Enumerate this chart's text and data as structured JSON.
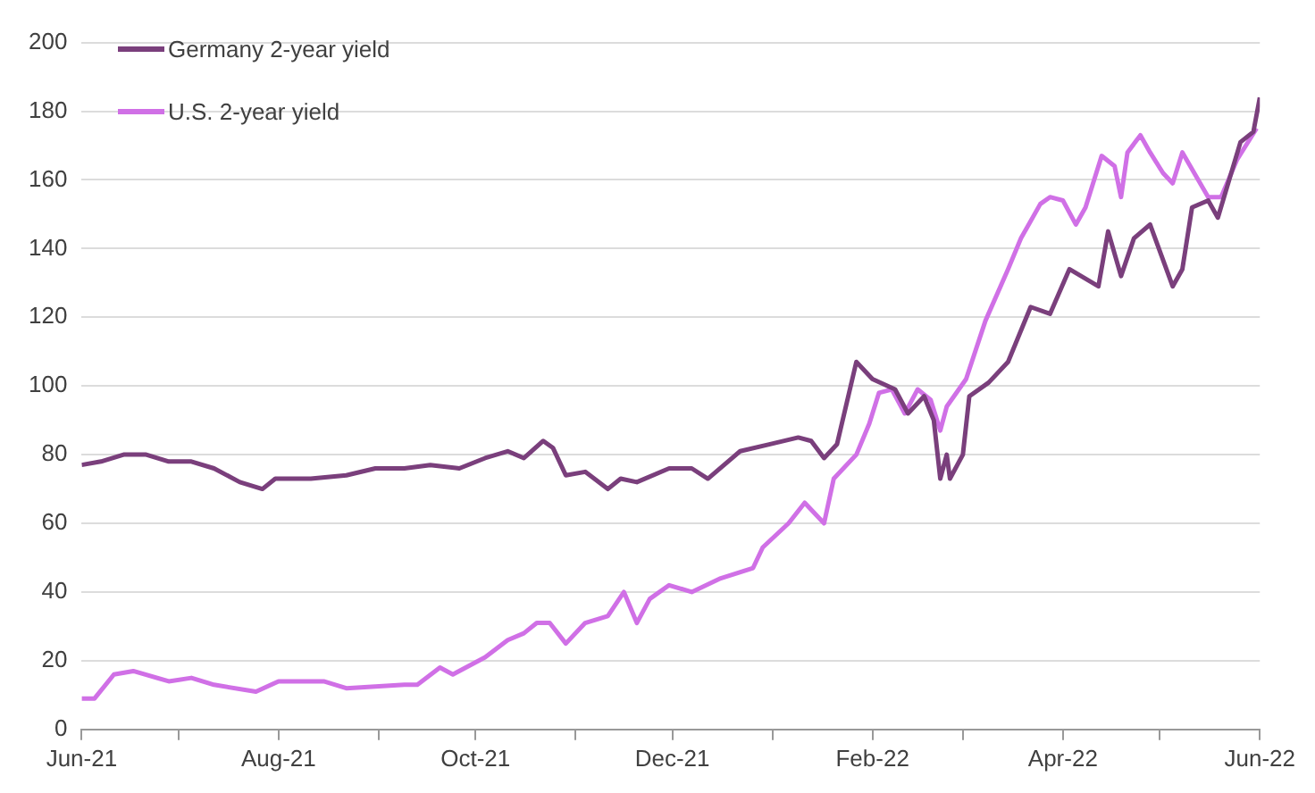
{
  "chart_data": {
    "type": "line",
    "xlim": [
      "2021-06-01",
      "2022-06-01"
    ],
    "xticks": [
      {
        "value": "2021-06-01",
        "label": "Jun-21"
      },
      {
        "value": "2021-07-01",
        "label": null
      },
      {
        "value": "2021-08-01",
        "label": "Aug-21"
      },
      {
        "value": "2021-09-01",
        "label": null
      },
      {
        "value": "2021-10-01",
        "label": "Oct-21"
      },
      {
        "value": "2021-11-01",
        "label": null
      },
      {
        "value": "2021-12-01",
        "label": "Dec-21"
      },
      {
        "value": "2022-01-01",
        "label": null
      },
      {
        "value": "2022-02-01",
        "label": "Feb-22"
      },
      {
        "value": "2022-03-01",
        "label": null
      },
      {
        "value": "2022-04-01",
        "label": "Apr-22"
      },
      {
        "value": "2022-05-01",
        "label": null
      },
      {
        "value": "2022-06-01",
        "label": "Jun-22"
      }
    ],
    "ylim": [
      0,
      200
    ],
    "yticks": [
      0,
      20,
      40,
      60,
      80,
      100,
      120,
      140,
      160,
      180,
      200
    ],
    "grid": "y",
    "legend": "top left",
    "marker": "none",
    "line_style": "solid",
    "series": [
      {
        "name": "Germany 2-year yield",
        "color": "#7a3f7c",
        "x": [
          "2021-06-01",
          "2021-06-07",
          "2021-06-14",
          "2021-06-21",
          "2021-06-28",
          "2021-07-05",
          "2021-07-12",
          "2021-07-20",
          "2021-07-27",
          "2021-07-31",
          "2021-08-11",
          "2021-08-22",
          "2021-08-31",
          "2021-09-09",
          "2021-09-17",
          "2021-09-26",
          "2021-10-04",
          "2021-10-11",
          "2021-10-16",
          "2021-10-22",
          "2021-10-25",
          "2021-10-29",
          "2021-11-04",
          "2021-11-11",
          "2021-11-15",
          "2021-11-20",
          "2021-11-30",
          "2021-12-07",
          "2021-12-12",
          "2021-12-22",
          "2021-12-31",
          "2022-01-09",
          "2022-01-13",
          "2022-01-17",
          "2022-01-21",
          "2022-01-27",
          "2022-02-01",
          "2022-02-08",
          "2022-02-12",
          "2022-02-17",
          "2022-02-20",
          "2022-02-22",
          "2022-02-24",
          "2022-02-25",
          "2022-03-01",
          "2022-03-03",
          "2022-03-09",
          "2022-03-15",
          "2022-03-22",
          "2022-03-28",
          "2022-04-03",
          "2022-04-12",
          "2022-04-15",
          "2022-04-19",
          "2022-04-23",
          "2022-04-28",
          "2022-05-05",
          "2022-05-08",
          "2022-05-11",
          "2022-05-16",
          "2022-05-19",
          "2022-05-26",
          "2022-05-30",
          "2022-06-01"
        ],
        "values": [
          77,
          78,
          80,
          80,
          78,
          78,
          76,
          72,
          70,
          73,
          73,
          74,
          76,
          76,
          77,
          76,
          79,
          81,
          79,
          84,
          82,
          74,
          75,
          70,
          73,
          72,
          76,
          76,
          73,
          81,
          83,
          85,
          84,
          79,
          83,
          107,
          102,
          99,
          92,
          97,
          90,
          73,
          80,
          73,
          80,
          97,
          101,
          107,
          123,
          121,
          134,
          129,
          145,
          132,
          143,
          147,
          129,
          134,
          152,
          154,
          149,
          171,
          174,
          184
        ]
      },
      {
        "name": "U.S. 2-year yield",
        "color": "#d070e6",
        "x": [
          "2021-06-01",
          "2021-06-05",
          "2021-06-11",
          "2021-06-17",
          "2021-06-28",
          "2021-07-05",
          "2021-07-12",
          "2021-07-25",
          "2021-08-01",
          "2021-08-15",
          "2021-08-22",
          "2021-09-09",
          "2021-09-13",
          "2021-09-20",
          "2021-09-24",
          "2021-10-04",
          "2021-10-11",
          "2021-10-16",
          "2021-10-20",
          "2021-10-24",
          "2021-10-29",
          "2021-11-04",
          "2021-11-11",
          "2021-11-16",
          "2021-11-20",
          "2021-11-24",
          "2021-11-30",
          "2021-12-07",
          "2021-12-16",
          "2021-12-26",
          "2021-12-29",
          "2022-01-06",
          "2022-01-11",
          "2022-01-17",
          "2022-01-20",
          "2022-01-27",
          "2022-01-31",
          "2022-02-03",
          "2022-02-07",
          "2022-02-11",
          "2022-02-15",
          "2022-02-19",
          "2022-02-22",
          "2022-02-24",
          "2022-03-02",
          "2022-03-08",
          "2022-03-15",
          "2022-03-19",
          "2022-03-25",
          "2022-03-28",
          "2022-04-01",
          "2022-04-05",
          "2022-04-08",
          "2022-04-13",
          "2022-04-17",
          "2022-04-19",
          "2022-04-21",
          "2022-04-25",
          "2022-04-28",
          "2022-05-02",
          "2022-05-05",
          "2022-05-08",
          "2022-05-16",
          "2022-05-20",
          "2022-05-25",
          "2022-05-31"
        ],
        "values": [
          9,
          9,
          16,
          17,
          14,
          15,
          13,
          11,
          14,
          14,
          12,
          13,
          13,
          18,
          16,
          21,
          26,
          28,
          31,
          31,
          25,
          31,
          33,
          40,
          31,
          38,
          42,
          40,
          44,
          47,
          53,
          60,
          66,
          60,
          73,
          80,
          89,
          98,
          99,
          92,
          99,
          96,
          87,
          94,
          102,
          119,
          134,
          143,
          153,
          155,
          154,
          147,
          152,
          167,
          164,
          155,
          168,
          173,
          168,
          162,
          159,
          168,
          155,
          155,
          166,
          175
        ]
      }
    ]
  }
}
